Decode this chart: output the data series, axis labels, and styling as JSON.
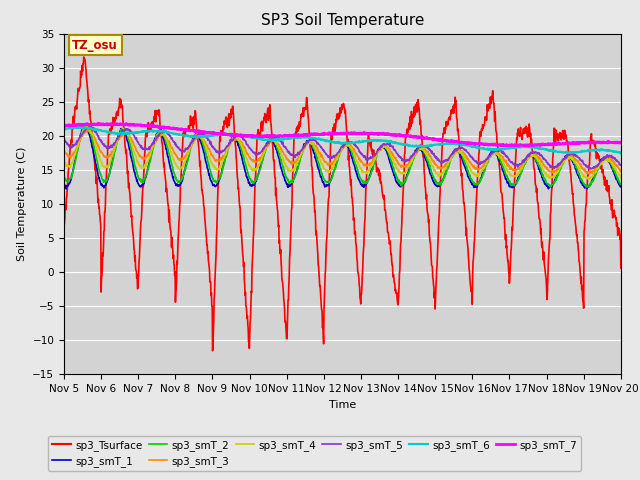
{
  "title": "SP3 Soil Temperature",
  "ylabel": "Soil Temperature (C)",
  "xlabel": "Time",
  "tz_label": "TZ_osu",
  "ylim": [
    -15,
    35
  ],
  "background_color": "#e8e8e8",
  "plot_bg_color": "#d3d3d3",
  "x_start": 5,
  "x_end": 20,
  "x_ticks": [
    5,
    6,
    7,
    8,
    9,
    10,
    11,
    12,
    13,
    14,
    15,
    16,
    17,
    18,
    19,
    20
  ],
  "x_tick_labels": [
    "Nov 5",
    "Nov 6",
    "Nov 7",
    "Nov 8",
    "Nov 9",
    "Nov 10",
    "Nov 11",
    "Nov 12",
    "Nov 13",
    "Nov 14",
    "Nov 15",
    "Nov 16",
    "Nov 17",
    "Nov 18",
    "Nov 19",
    "Nov 20"
  ],
  "series": {
    "sp3_Tsurface": {
      "color": "#ff0000",
      "lw": 1.2
    },
    "sp3_smT_1": {
      "color": "#0000cc",
      "lw": 1.2
    },
    "sp3_smT_2": {
      "color": "#00cc00",
      "lw": 1.2
    },
    "sp3_smT_3": {
      "color": "#ff8800",
      "lw": 1.2
    },
    "sp3_smT_4": {
      "color": "#cccc00",
      "lw": 1.2
    },
    "sp3_smT_5": {
      "color": "#8833cc",
      "lw": 1.2
    },
    "sp3_smT_6": {
      "color": "#00cccc",
      "lw": 1.5
    },
    "sp3_smT_7": {
      "color": "#ff00ff",
      "lw": 2.0
    }
  },
  "legend_order": [
    "sp3_Tsurface",
    "sp3_smT_1",
    "sp3_smT_2",
    "sp3_smT_3",
    "sp3_smT_4",
    "sp3_smT_5",
    "sp3_smT_6",
    "sp3_smT_7"
  ]
}
